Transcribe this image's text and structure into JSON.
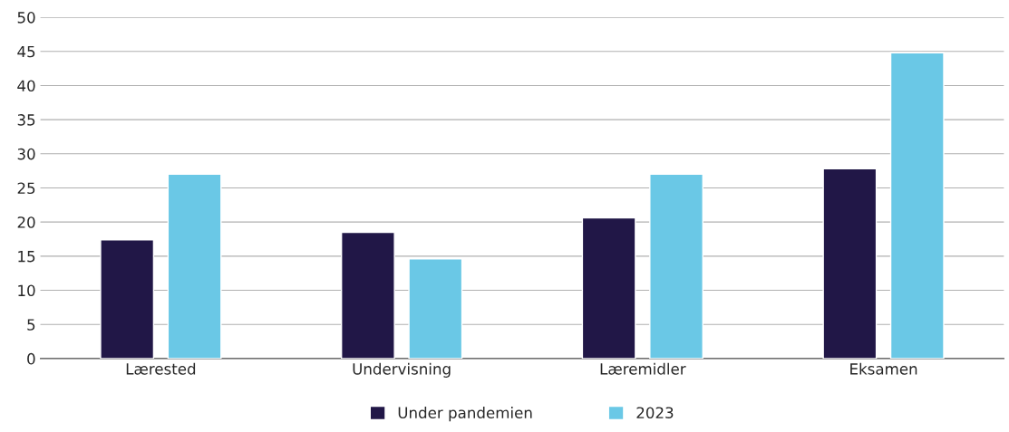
{
  "chart_data": {
    "type": "bar",
    "categories": [
      "Lærested",
      "Undervisning",
      "Læremidler",
      "Eksamen"
    ],
    "series": [
      {
        "name": "Under pandemien",
        "color": "#211747",
        "values": [
          17.4,
          18.5,
          20.6,
          27.8
        ]
      },
      {
        "name": "2023",
        "color": "#6ac8e6",
        "values": [
          27.0,
          14.6,
          27.0,
          44.8
        ]
      }
    ],
    "ylim": [
      0,
      50
    ],
    "yticks": [
      0,
      5,
      10,
      15,
      20,
      25,
      30,
      35,
      40,
      45,
      50
    ],
    "grid": "y",
    "legend": "bottom"
  }
}
